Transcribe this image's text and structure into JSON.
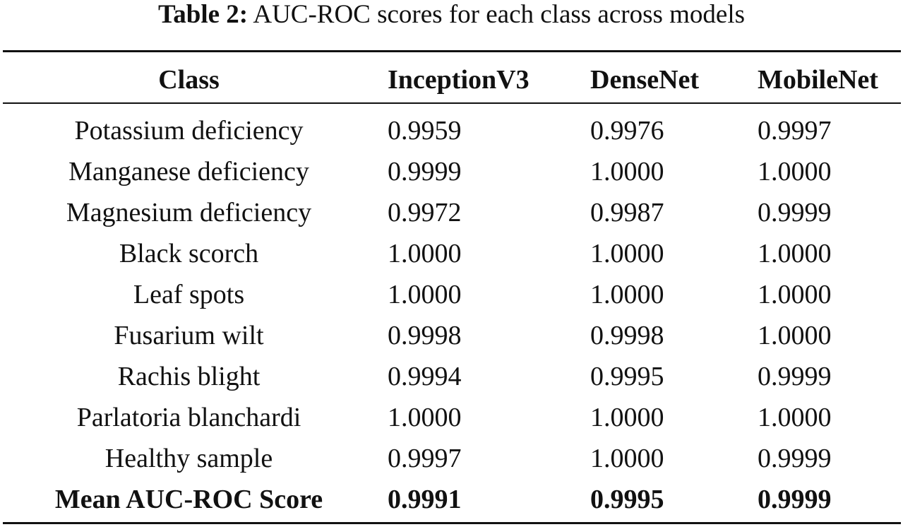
{
  "caption": {
    "label": "Table 2:",
    "text": "AUC-ROC scores for each class across models"
  },
  "table": {
    "headers": [
      "Class",
      "InceptionV3",
      "DenseNet",
      "MobileNet"
    ],
    "rows": [
      [
        "Potassium deficiency",
        "0.9959",
        "0.9976",
        "0.9997"
      ],
      [
        "Manganese deficiency",
        "0.9999",
        "1.0000",
        "1.0000"
      ],
      [
        "Magnesium deficiency",
        "0.9972",
        "0.9987",
        "0.9999"
      ],
      [
        "Black scorch",
        "1.0000",
        "1.0000",
        "1.0000"
      ],
      [
        "Leaf spots",
        "1.0000",
        "1.0000",
        "1.0000"
      ],
      [
        "Fusarium wilt",
        "0.9998",
        "0.9998",
        "1.0000"
      ],
      [
        "Rachis blight",
        "0.9994",
        "0.9995",
        "0.9999"
      ],
      [
        "Parlatoria blanchardi",
        "1.0000",
        "1.0000",
        "1.0000"
      ],
      [
        "Healthy sample",
        "0.9997",
        "1.0000",
        "0.9999"
      ]
    ],
    "summary": [
      "Mean AUC-ROC Score",
      "0.9991",
      "0.9995",
      "0.9999"
    ]
  }
}
